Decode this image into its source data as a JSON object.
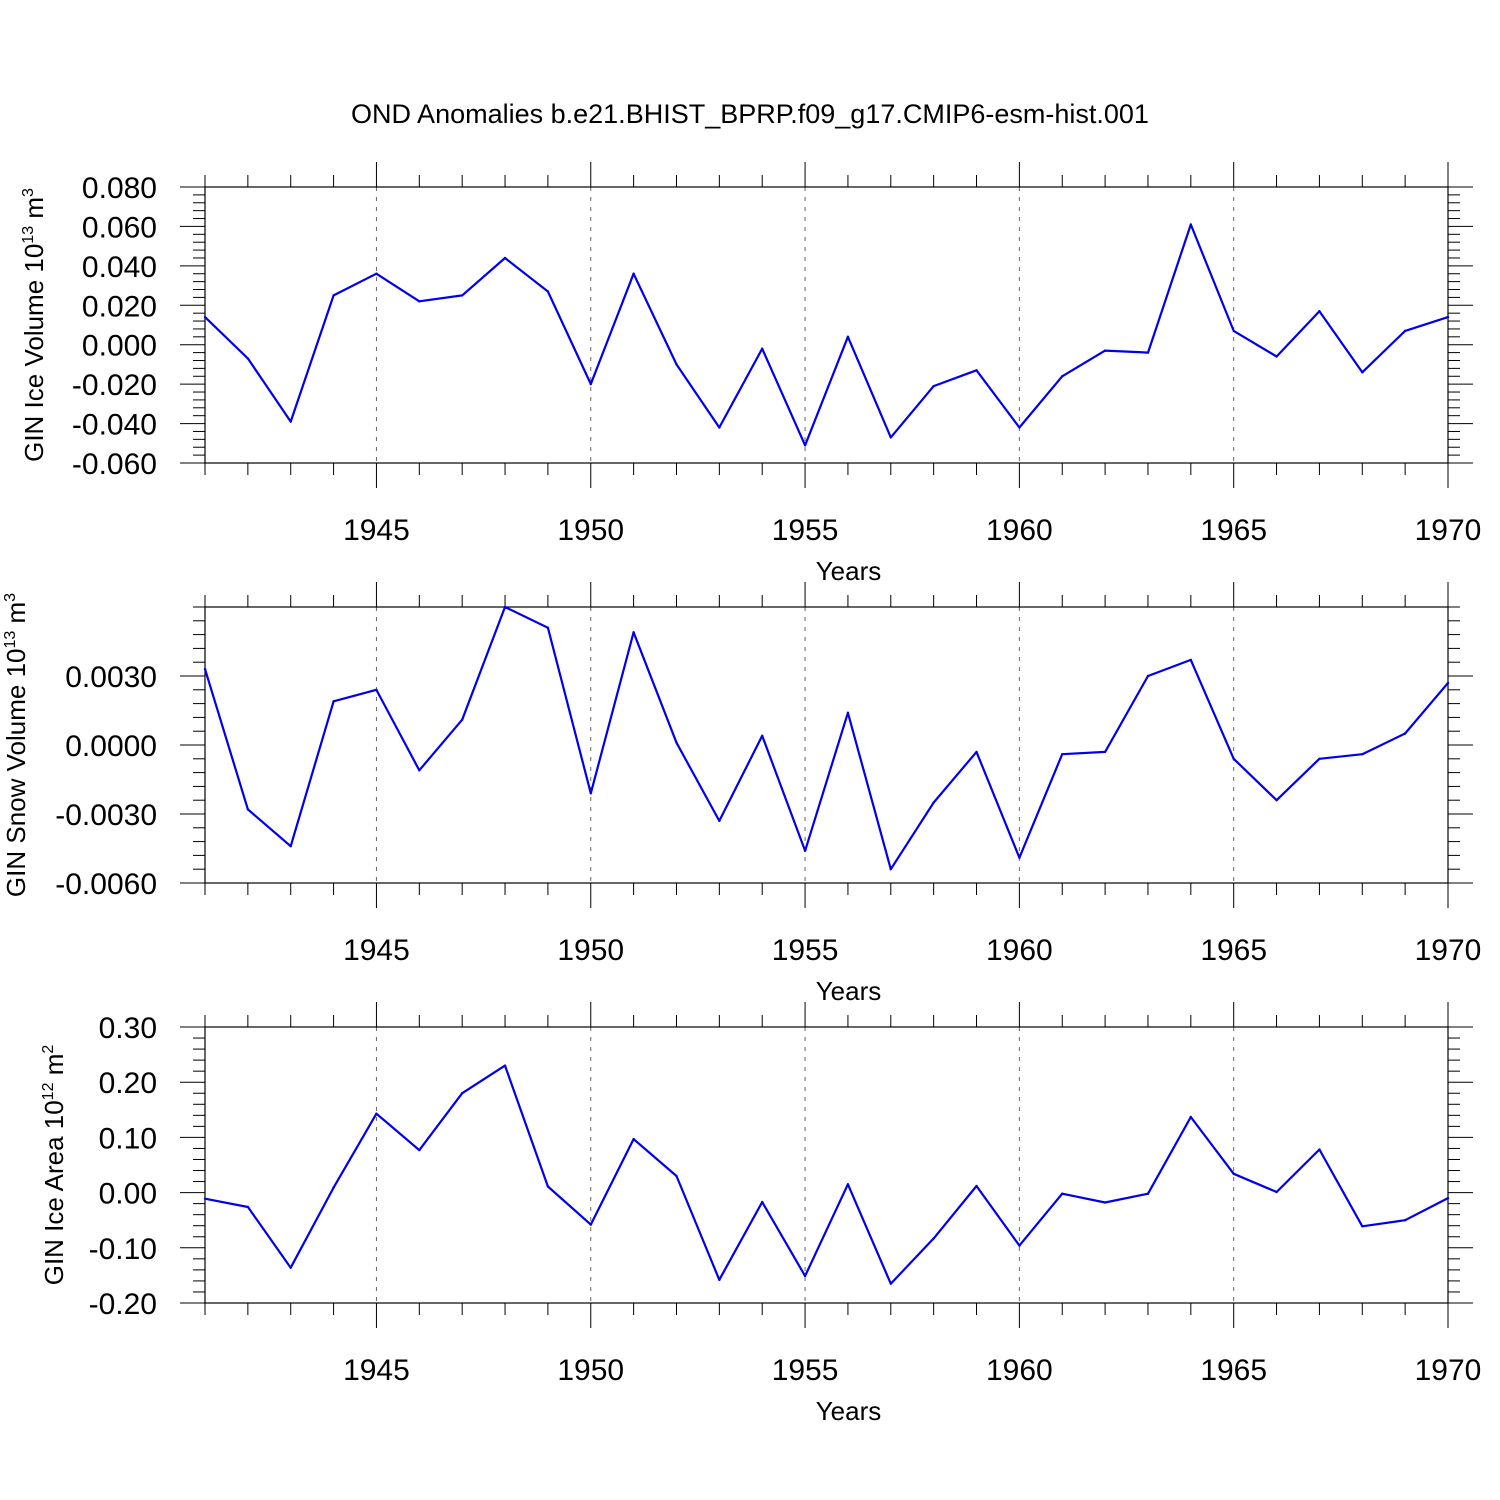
{
  "page": {
    "title": "OND Anomalies b.e21.BHIST_BPRP.f09_g17.CMIP6-esm-hist.001"
  },
  "chart_data": [
    {
      "type": "line",
      "xlabel": "Years",
      "ylabel": "GIN Ice Volume 10",
      "ylabel_exp": "13",
      "ylabel_unit": "m",
      "ylabel_unit_exp": "3",
      "xlim": [
        1941,
        1970
      ],
      "ylim": [
        -0.06,
        0.08
      ],
      "x_ticks": [
        "1945",
        "1950",
        "1955",
        "1960",
        "1965",
        "1970"
      ],
      "x_tick_values": [
        1945,
        1950,
        1955,
        1960,
        1965,
        1970
      ],
      "y_ticks": [
        "0.080",
        "0.060",
        "0.040",
        "0.020",
        "0.000",
        "-0.020",
        "-0.040",
        "-0.060"
      ],
      "y_tick_values": [
        0.08,
        0.06,
        0.04,
        0.02,
        0.0,
        -0.02,
        -0.04,
        -0.06
      ],
      "grid": "dashed vertical at labeled years",
      "color": "#0000ee",
      "x": [
        1941,
        1942,
        1943,
        1944,
        1945,
        1946,
        1947,
        1948,
        1949,
        1950,
        1951,
        1952,
        1953,
        1954,
        1955,
        1956,
        1957,
        1958,
        1959,
        1960,
        1961,
        1962,
        1963,
        1964,
        1965,
        1966,
        1967,
        1968,
        1969,
        1970
      ],
      "values": [
        0.014,
        -0.007,
        -0.039,
        0.025,
        0.036,
        0.022,
        0.025,
        0.044,
        0.027,
        -0.02,
        0.036,
        -0.01,
        -0.042,
        -0.002,
        -0.051,
        0.004,
        -0.047,
        -0.021,
        -0.013,
        -0.042,
        -0.016,
        -0.003,
        -0.004,
        0.061,
        0.007,
        -0.006,
        0.017,
        -0.014,
        0.007,
        0.014
      ]
    },
    {
      "type": "line",
      "xlabel": "Years",
      "ylabel": "GIN Snow Volume 10",
      "ylabel_exp": "13",
      "ylabel_unit": "m",
      "ylabel_unit_exp": "3",
      "xlim": [
        1941,
        1970
      ],
      "ylim": [
        -0.006,
        0.006
      ],
      "x_ticks": [
        "1945",
        "1950",
        "1955",
        "1960",
        "1965",
        "1970"
      ],
      "x_tick_values": [
        1945,
        1950,
        1955,
        1960,
        1965,
        1970
      ],
      "y_ticks": [
        "0.0030",
        "0.0000",
        "-0.0030",
        "-0.0060"
      ],
      "y_tick_values": [
        0.003,
        0.0,
        -0.003,
        -0.006
      ],
      "grid": "dashed vertical at labeled years",
      "color": "#0000ee",
      "x": [
        1941,
        1942,
        1943,
        1944,
        1945,
        1946,
        1947,
        1948,
        1949,
        1950,
        1951,
        1952,
        1953,
        1954,
        1955,
        1956,
        1957,
        1958,
        1959,
        1960,
        1961,
        1962,
        1963,
        1964,
        1965,
        1966,
        1967,
        1968,
        1969,
        1970
      ],
      "values": [
        0.0033,
        -0.0028,
        -0.0044,
        0.0019,
        0.0024,
        -0.0011,
        0.0011,
        0.006,
        0.0051,
        -0.0021,
        0.0049,
        0.0001,
        -0.0033,
        0.0004,
        -0.0046,
        0.0014,
        -0.0054,
        -0.0025,
        -0.0003,
        -0.0049,
        -0.0004,
        -0.0003,
        0.003,
        0.0037,
        -0.0006,
        -0.0024,
        -0.0006,
        -0.0004,
        0.0005,
        0.0027
      ]
    },
    {
      "type": "line",
      "xlabel": "Years",
      "ylabel": "GIN Ice Area 10",
      "ylabel_exp": "12",
      "ylabel_unit": "m",
      "ylabel_unit_exp": "2",
      "xlim": [
        1941,
        1970
      ],
      "ylim": [
        -0.2,
        0.3
      ],
      "x_ticks": [
        "1945",
        "1950",
        "1955",
        "1960",
        "1965",
        "1970"
      ],
      "x_tick_values": [
        1945,
        1950,
        1955,
        1960,
        1965,
        1970
      ],
      "y_ticks": [
        "0.30",
        "0.20",
        "0.10",
        "0.00",
        "-0.10",
        "-0.20"
      ],
      "y_tick_values": [
        0.3,
        0.2,
        0.1,
        0.0,
        -0.1,
        -0.2
      ],
      "grid": "dashed vertical at labeled years",
      "color": "#0000ee",
      "x": [
        1941,
        1942,
        1943,
        1944,
        1945,
        1946,
        1947,
        1948,
        1949,
        1950,
        1951,
        1952,
        1953,
        1954,
        1955,
        1956,
        1957,
        1958,
        1959,
        1960,
        1961,
        1962,
        1963,
        1964,
        1965,
        1966,
        1967,
        1968,
        1969,
        1970
      ],
      "values": [
        -0.011,
        -0.026,
        -0.136,
        0.009,
        0.143,
        0.077,
        0.18,
        0.23,
        0.011,
        -0.058,
        0.097,
        0.03,
        -0.158,
        -0.017,
        -0.151,
        0.015,
        -0.165,
        -0.083,
        0.012,
        -0.096,
        -0.002,
        -0.018,
        -0.002,
        0.137,
        0.034,
        0.001,
        0.078,
        -0.061,
        -0.05,
        -0.01
      ]
    }
  ]
}
